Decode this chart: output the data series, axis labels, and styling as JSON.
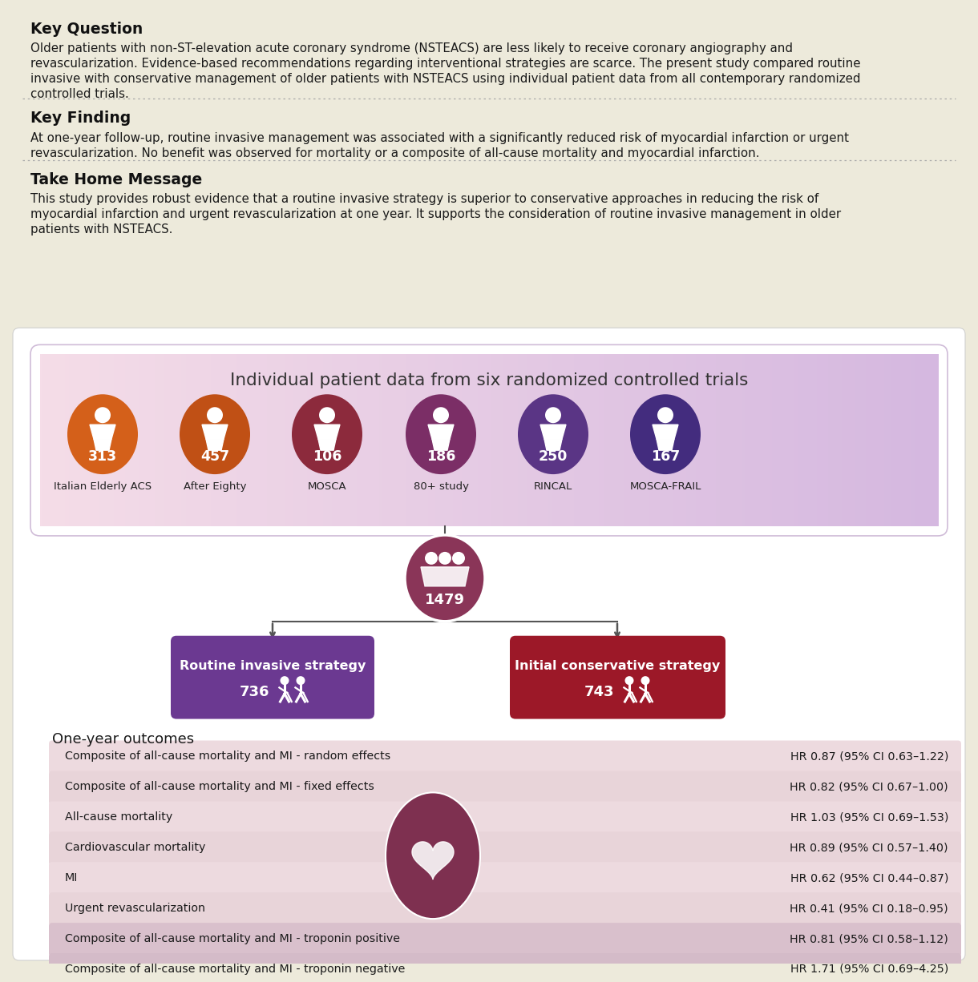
{
  "bg_top_color": "#edeadb",
  "title_key_question": "Key Question",
  "text_key_question_lines": [
    "Older patients with non-ST-elevation acute coronary syndrome (NSTEACS) are less likely to receive coronary angiography and",
    "revascularization. Evidence-based recommendations regarding interventional strategies are scarce. The present study compared routine",
    "invasive with conservative management of older patients with NSTEACS using individual patient data from all contemporary randomized",
    "controlled trials."
  ],
  "title_key_finding": "Key Finding",
  "text_key_finding_lines": [
    "At one-year follow-up, routine invasive management was associated with a significantly reduced risk of myocardial infarction or urgent",
    "revascularization. No benefit was observed for mortality or a composite of all-cause mortality and myocardial infarction."
  ],
  "title_take_home": "Take Home Message",
  "text_take_home_lines": [
    "This study provides robust evidence that a routine invasive strategy is superior to conservative approaches in reducing the risk of",
    "myocardial infarction and urgent revascularization at one year. It supports the consideration of routine invasive management in older",
    "patients with NSTEACS."
  ],
  "diagram_title": "Individual patient data from six randomized controlled trials",
  "trials": [
    {
      "name": "Italian Elderly ACS",
      "n": "313",
      "color": "#d4601a"
    },
    {
      "name": "After Eighty",
      "n": "457",
      "color": "#c05015"
    },
    {
      "name": "MOSCA",
      "n": "106",
      "color": "#8c2a3c"
    },
    {
      "name": "80+ study",
      "n": "186",
      "color": "#7b2e66"
    },
    {
      "name": "RINCAL",
      "n": "250",
      "color": "#5a3585"
    },
    {
      "name": "MOSCA-FRAIL",
      "n": "167",
      "color": "#432c7e"
    }
  ],
  "total_n": "1479",
  "total_color": "#8a3558",
  "invasive_label": "Routine invasive strategy",
  "invasive_n": "736",
  "invasive_color": "#6b3991",
  "conservative_label": "Initial conservative strategy",
  "conservative_n": "743",
  "conservative_color": "#9c1828",
  "outcomes_title": "One-year outcomes",
  "outcomes": [
    {
      "label": "Composite of all-cause mortality and MI - random effects",
      "hr": "HR 0.87 (95% CI 0.63–1.22)",
      "bg": "#eddadf",
      "purple": false
    },
    {
      "label": "Composite of all-cause mortality and MI - fixed effects",
      "hr": "HR 0.82 (95% CI 0.67–1.00)",
      "bg": "#e8d4d9",
      "purple": false
    },
    {
      "label": "All-cause mortality",
      "hr": "HR 1.03 (95% CI 0.69–1.53)",
      "bg": "#eddadf",
      "purple": false
    },
    {
      "label": "Cardiovascular mortality",
      "hr": "HR 0.89 (95% CI 0.57–1.40)",
      "bg": "#e8d4d9",
      "purple": false
    },
    {
      "label": "MI",
      "hr": "HR 0.62 (95% CI 0.44–0.87)",
      "bg": "#eddadf",
      "purple": false
    },
    {
      "label": "Urgent revascularization",
      "hr": "HR 0.41 (95% CI 0.18–0.95)",
      "bg": "#e8d4d9",
      "purple": false
    },
    {
      "label": "Composite of all-cause mortality and MI - troponin positive",
      "hr": "HR 0.81 (95% CI 0.58–1.12)",
      "bg": "#d9c0cc",
      "purple": true
    },
    {
      "label": "Composite of all-cause mortality and MI - troponin negative",
      "hr": "HR 1.71 (95% CI 0.69–4.25)",
      "bg": "#d4bbc8",
      "purple": true
    }
  ],
  "heart_color": "#7e3050",
  "trial_box_left_color": "#f5dde8",
  "trial_box_right_color": "#d8bce0"
}
